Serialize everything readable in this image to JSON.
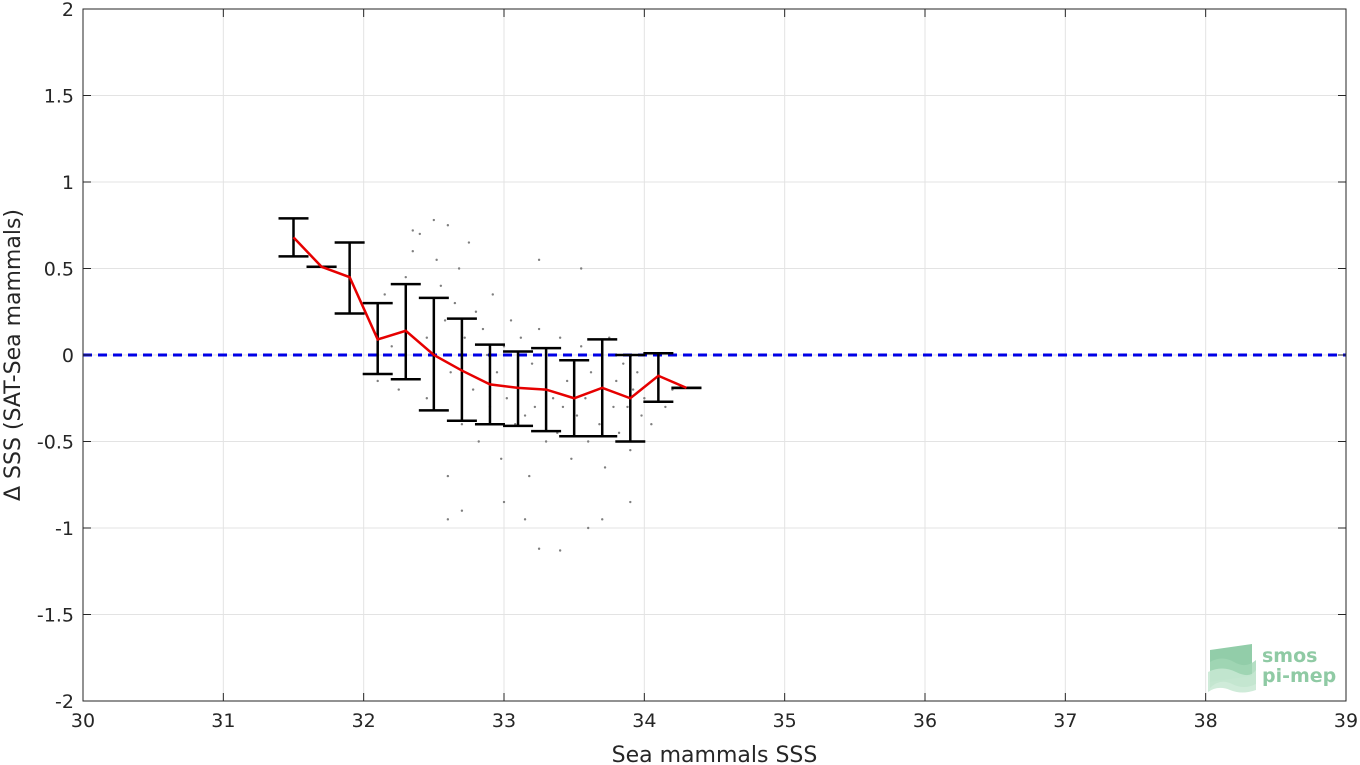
{
  "chart_data": {
    "type": "scatter",
    "xlabel": "Sea mammals SSS",
    "ylabel": "Δ SSS (SAT-Sea mammals)",
    "xlim": [
      30,
      39
    ],
    "ylim": [
      -2,
      2
    ],
    "x_ticks": [
      "30",
      "31",
      "32",
      "33",
      "34",
      "35",
      "36",
      "37",
      "38",
      "39"
    ],
    "y_ticks": [
      "-2",
      "-1.5",
      "-1",
      "-0.5",
      "0",
      "0.5",
      "1",
      "1.5",
      "2"
    ],
    "grid": true,
    "zero_line": {
      "y": 0,
      "style": "dashed",
      "color": "#0000e6"
    },
    "binned_mean": {
      "color": "#e60000",
      "x": [
        31.5,
        31.7,
        31.9,
        32.1,
        32.3,
        32.5,
        32.7,
        32.9,
        33.1,
        33.3,
        33.5,
        33.7,
        33.9,
        34.1,
        34.3
      ],
      "mean": [
        0.68,
        0.51,
        0.45,
        0.09,
        0.14,
        0.0,
        -0.09,
        -0.17,
        -0.19,
        -0.2,
        -0.25,
        -0.19,
        -0.25,
        -0.12,
        -0.19
      ],
      "err_low": [
        0.57,
        0.51,
        0.24,
        -0.11,
        -0.14,
        -0.32,
        -0.38,
        -0.4,
        -0.41,
        -0.44,
        -0.47,
        -0.47,
        -0.5,
        -0.27,
        -0.19
      ],
      "err_high": [
        0.79,
        0.51,
        0.65,
        0.3,
        0.41,
        0.33,
        0.21,
        0.06,
        0.02,
        0.04,
        -0.03,
        0.09,
        0.0,
        0.01,
        -0.19
      ]
    },
    "scatter_points": {
      "color": "#7f7f7f",
      "points": [
        [
          32.15,
          0.35
        ],
        [
          32.2,
          0.05
        ],
        [
          32.25,
          -0.2
        ],
        [
          32.3,
          0.45
        ],
        [
          32.35,
          0.6
        ],
        [
          32.4,
          0.7
        ],
        [
          32.45,
          0.1
        ],
        [
          32.5,
          -0.3
        ],
        [
          32.52,
          0.55
        ],
        [
          32.55,
          0.4
        ],
        [
          32.58,
          0.2
        ],
        [
          32.6,
          0.75
        ],
        [
          32.62,
          -0.1
        ],
        [
          32.65,
          0.3
        ],
        [
          32.68,
          0.5
        ],
        [
          32.7,
          -0.4
        ],
        [
          32.72,
          0.1
        ],
        [
          32.75,
          0.65
        ],
        [
          32.78,
          -0.2
        ],
        [
          32.8,
          0.25
        ],
        [
          32.82,
          -0.5
        ],
        [
          32.85,
          0.15
        ],
        [
          32.88,
          0.0
        ],
        [
          32.9,
          -0.3
        ],
        [
          32.92,
          0.35
        ],
        [
          32.95,
          -0.1
        ],
        [
          32.98,
          -0.6
        ],
        [
          33.0,
          0.05
        ],
        [
          33.02,
          -0.25
        ],
        [
          33.05,
          0.2
        ],
        [
          33.08,
          -0.4
        ],
        [
          33.1,
          -0.15
        ],
        [
          33.12,
          0.1
        ],
        [
          33.15,
          -0.35
        ],
        [
          33.18,
          -0.7
        ],
        [
          33.2,
          -0.05
        ],
        [
          33.22,
          -0.3
        ],
        [
          33.25,
          0.15
        ],
        [
          33.28,
          -0.2
        ],
        [
          33.3,
          -0.5
        ],
        [
          33.32,
          0.0
        ],
        [
          33.35,
          -0.25
        ],
        [
          33.38,
          -0.45
        ],
        [
          33.4,
          0.1
        ],
        [
          33.42,
          -0.3
        ],
        [
          33.45,
          -0.15
        ],
        [
          33.48,
          -0.6
        ],
        [
          33.5,
          -0.05
        ],
        [
          33.52,
          -0.35
        ],
        [
          33.55,
          0.05
        ],
        [
          33.58,
          -0.25
        ],
        [
          33.6,
          -0.5
        ],
        [
          33.62,
          -0.1
        ],
        [
          33.65,
          0.0
        ],
        [
          33.68,
          -0.4
        ],
        [
          33.7,
          -0.2
        ],
        [
          33.72,
          -0.65
        ],
        [
          33.75,
          0.1
        ],
        [
          33.78,
          -0.3
        ],
        [
          33.8,
          -0.15
        ],
        [
          33.82,
          -0.45
        ],
        [
          33.85,
          -0.05
        ],
        [
          33.88,
          -0.3
        ],
        [
          33.9,
          -0.55
        ],
        [
          33.92,
          -0.2
        ],
        [
          33.95,
          -0.1
        ],
        [
          33.98,
          -0.35
        ],
        [
          34.0,
          -0.25
        ],
        [
          34.05,
          -0.4
        ],
        [
          34.1,
          -0.15
        ],
        [
          34.15,
          -0.3
        ],
        [
          34.2,
          -0.2
        ],
        [
          32.6,
          -0.7
        ],
        [
          32.7,
          -0.9
        ],
        [
          33.0,
          -0.85
        ],
        [
          33.25,
          -1.12
        ],
        [
          33.4,
          -1.13
        ],
        [
          33.6,
          -1.0
        ],
        [
          33.7,
          -0.95
        ],
        [
          33.55,
          0.5
        ],
        [
          33.25,
          0.55
        ],
        [
          32.5,
          0.78
        ],
        [
          32.35,
          0.72
        ],
        [
          32.6,
          -0.95
        ],
        [
          33.15,
          -0.95
        ],
        [
          33.9,
          -0.85
        ],
        [
          32.1,
          -0.15
        ],
        [
          32.45,
          -0.25
        ]
      ]
    }
  },
  "logo": {
    "line1": "smos",
    "line2": "pi-mep"
  }
}
